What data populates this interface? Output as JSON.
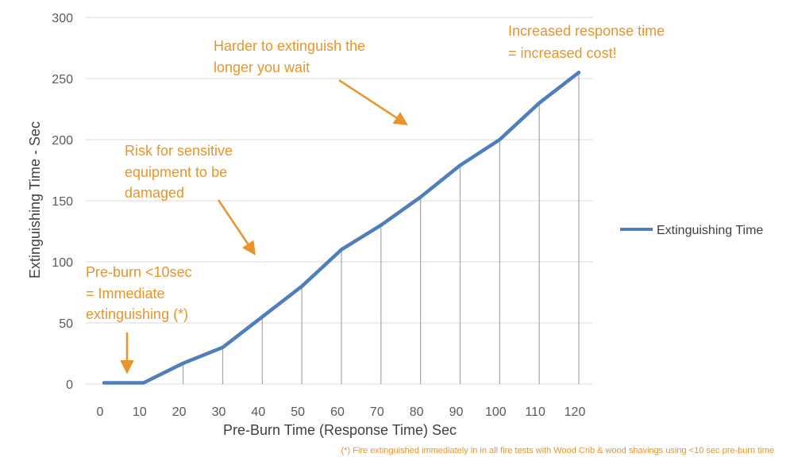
{
  "chart_data": {
    "type": "line",
    "x": [
      0,
      10,
      20,
      30,
      40,
      50,
      60,
      70,
      80,
      90,
      100,
      110,
      120
    ],
    "series": [
      {
        "name": "Extinguishing Time",
        "x": [
          1,
          11,
          21,
          31,
          41,
          51,
          61,
          71,
          81,
          91,
          101,
          111,
          121
        ],
        "values": [
          1,
          1,
          17,
          30,
          55,
          80,
          110,
          130,
          153,
          179,
          200,
          230,
          255
        ],
        "color": "#4E7FBA"
      }
    ],
    "xlabel": "Pre-Burn Time (Response Time) Sec",
    "ylabel": "Extinguishing Time - Sec",
    "xlim": [
      0,
      120
    ],
    "ylim": [
      0,
      300
    ],
    "x_ticks": [
      0,
      10,
      20,
      30,
      40,
      50,
      60,
      70,
      80,
      90,
      100,
      110,
      120
    ],
    "y_ticks": [
      0,
      50,
      100,
      150,
      200,
      250,
      300
    ],
    "grid": true,
    "drop_lines": true,
    "legend": {
      "position": "right",
      "entries": [
        "Extinguishing Time"
      ]
    },
    "annotation_color": "#E8942A",
    "annotations": [
      {
        "lines": [
          "Increased response time",
          "= increased cost!"
        ],
        "arrow": false
      },
      {
        "lines": [
          "Harder to extinguish the",
          "longer you wait"
        ],
        "arrow": true
      },
      {
        "lines": [
          "Risk for sensitive",
          "equipment to be",
          "damaged"
        ],
        "arrow": true
      },
      {
        "lines": [
          "Pre-burn <10sec",
          "= Immediate",
          "extinguishing (*)"
        ],
        "arrow": true
      }
    ],
    "footnote": "(*) Fire extinguished immediately in in all fire tests with Wood Crib & wood shavings using <10 sec pre-burn time"
  }
}
